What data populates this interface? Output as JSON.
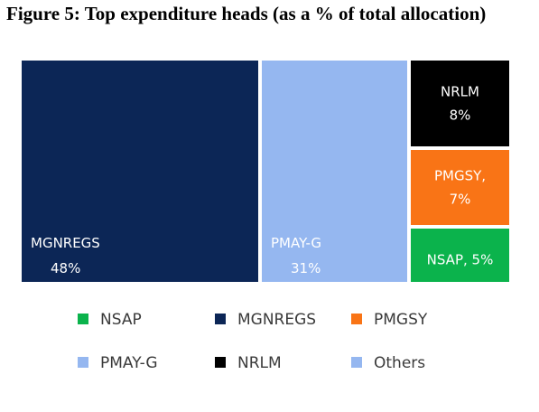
{
  "title": "Figure 5: Top expenditure heads (as a % of total allocation)",
  "chart_data": {
    "type": "treemap",
    "unit": "%",
    "items": [
      {
        "name": "MGNREGS",
        "value": 48,
        "label_lines": [
          "MGNREGS",
          "48%"
        ],
        "color": "#0c2656"
      },
      {
        "name": "PMAY-G",
        "value": 31,
        "label_lines": [
          "PMAY-G",
          "31%"
        ],
        "color": "#95b7f0"
      },
      {
        "name": "NRLM",
        "value": 8,
        "label_lines": [
          "NRLM",
          "8%"
        ],
        "color": "#000000"
      },
      {
        "name": "PMGSY",
        "value": 7,
        "label_lines": [
          "PMGSY,",
          "7%"
        ],
        "color": "#f97416"
      },
      {
        "name": "NSAP",
        "value": 5,
        "label_lines": [
          "NSAP, 5%"
        ],
        "color": "#0bb34c"
      }
    ],
    "legend": [
      {
        "name": "NSAP",
        "color": "#0bb34c"
      },
      {
        "name": "MGNREGS",
        "color": "#0c2656"
      },
      {
        "name": "PMGSY",
        "color": "#f97416"
      },
      {
        "name": "PMAY-G",
        "color": "#95b7f0"
      },
      {
        "name": "NRLM",
        "color": "#000000"
      },
      {
        "name": "Others",
        "color": "#95b7f0"
      }
    ],
    "legend_position": "bottom"
  }
}
